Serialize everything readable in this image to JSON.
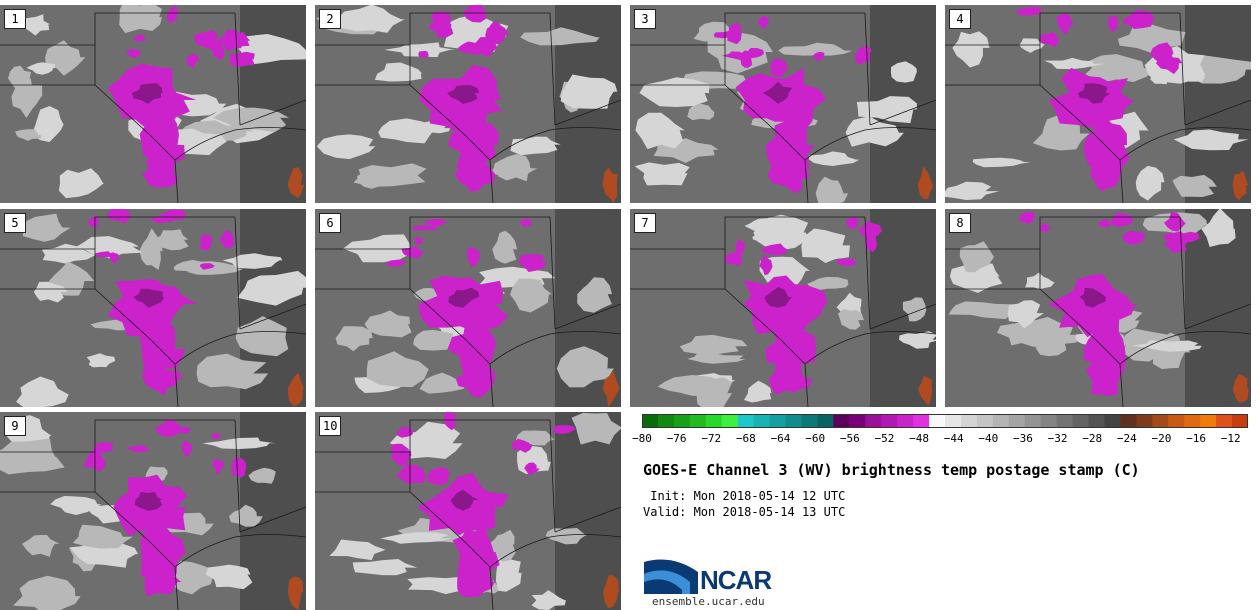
{
  "chart_data": {
    "type": "heatmap",
    "title": "GOES-E Channel 3 (WV) brightness temp postage stamp (C)",
    "panels": [
      "1",
      "2",
      "3",
      "4",
      "5",
      "6",
      "7",
      "8",
      "9",
      "10"
    ],
    "colorbar": {
      "unit": "C",
      "range": [
        -80,
        -10
      ],
      "ticks": [
        -80,
        -76,
        -72,
        -68,
        -64,
        -60,
        -56,
        -52,
        -48,
        -44,
        -40,
        -36,
        -32,
        -28,
        -24,
        -20,
        -16,
        -12
      ],
      "tick_labels": [
        "−80",
        "−76",
        "−72",
        "−68",
        "−64",
        "−60",
        "−56",
        "−52",
        "−48",
        "−44",
        "−40",
        "−36",
        "−32",
        "−28",
        "−24",
        "−20",
        "−16",
        "−12"
      ],
      "colors": [
        "#0a6b0a",
        "#108a10",
        "#18a018",
        "#20bb20",
        "#2ad82a",
        "#3ef03e",
        "#1cc8c8",
        "#18b4b4",
        "#14a0a0",
        "#108c8c",
        "#0c7878",
        "#086464",
        "#5c005c",
        "#7a007a",
        "#9a109a",
        "#b418b4",
        "#cc22cc",
        "#e030e0",
        "#f8f8f8",
        "#e6e6e6",
        "#d4d4d4",
        "#c4c4c4",
        "#b4b4b4",
        "#a4a4a4",
        "#949494",
        "#848484",
        "#747474",
        "#646464",
        "#545454",
        "#444444",
        "#603020",
        "#803a1c",
        "#a44a18",
        "#c85a14",
        "#e06a10",
        "#f07a0c",
        "#e0501a",
        "#c83c10"
      ]
    }
  },
  "header": {
    "title": "GOES-E Channel 3 (WV) brightness temp postage stamp (C)",
    "init": " Init: Mon 2018-05-14 12 UTC",
    "valid": "Valid: Mon 2018-05-14 13 UTC"
  },
  "branding": {
    "logo_text": "NCAR",
    "url": "ensemble.ucar.edu",
    "logo_colors": {
      "navy": "#0a3a73",
      "sky": "#3a8fd6"
    }
  },
  "panel_colors": {
    "background": "#6e6e6e",
    "light": "#b8b8b8",
    "lighter": "#d6d6d6",
    "dark": "#4e4e4e",
    "magenta": "#cc22cc",
    "purple": "#8a188a",
    "rust": "#b04a20"
  }
}
